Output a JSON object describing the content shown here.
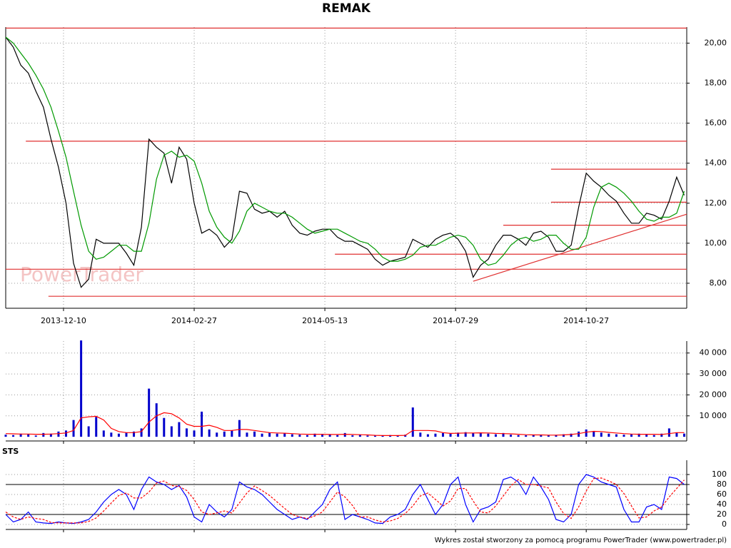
{
  "chart_data": [
    {
      "type": "line",
      "title": "REMAK",
      "watermark": "PowerTrader",
      "x": [
        0,
        3,
        6,
        9,
        12,
        15,
        18,
        21,
        24,
        27,
        30,
        33,
        36,
        39,
        42,
        45,
        48,
        51,
        54,
        57,
        60,
        63,
        66,
        69,
        72,
        75,
        78,
        81,
        84,
        87,
        90,
        93,
        96,
        99,
        102,
        105,
        108,
        111,
        114,
        117,
        120,
        123,
        126,
        129,
        132,
        135,
        138,
        141,
        144,
        147,
        150,
        153,
        156,
        159,
        162,
        165,
        168,
        171,
        174,
        177,
        180,
        183,
        186,
        189,
        192,
        195,
        198,
        201,
        204,
        207,
        210,
        213,
        216,
        219,
        222,
        225,
        228,
        231,
        234,
        237,
        240,
        243,
        246,
        249,
        252,
        255,
        258,
        261,
        264,
        267,
        270
      ],
      "series": [
        {
          "color": "#000000",
          "values": [
            20.3,
            19.8,
            18.9,
            18.5,
            17.6,
            16.8,
            15.2,
            13.8,
            12.0,
            9.0,
            7.8,
            8.2,
            10.2,
            10.0,
            10.0,
            10.0,
            9.5,
            8.9,
            10.8,
            15.2,
            14.8,
            14.5,
            13.0,
            14.8,
            14.2,
            12.0,
            10.5,
            10.7,
            10.4,
            9.8,
            10.2,
            12.6,
            12.5,
            11.7,
            11.5,
            11.6,
            11.3,
            11.6,
            10.9,
            10.5,
            10.4,
            10.6,
            10.7,
            10.7,
            10.3,
            10.1,
            10.1,
            9.9,
            9.7,
            9.2,
            8.9,
            9.1,
            9.2,
            9.3,
            10.2,
            10.0,
            9.8,
            10.2,
            10.4,
            10.5,
            10.2,
            9.6,
            8.3,
            8.9,
            9.2,
            9.9,
            10.4,
            10.4,
            10.2,
            9.9,
            10.5,
            10.6,
            10.3,
            9.6,
            9.6,
            9.9,
            11.8,
            13.5,
            13.1,
            12.8,
            12.4,
            12.1,
            11.5,
            11.0,
            11.0,
            11.5,
            11.4,
            11.2,
            12.1,
            13.3,
            12.4
          ]
        },
        {
          "color": "#009900",
          "values": [
            20.3,
            20.0,
            19.5,
            19.0,
            18.4,
            17.7,
            16.8,
            15.6,
            14.3,
            12.6,
            10.9,
            9.6,
            9.2,
            9.3,
            9.6,
            9.9,
            9.9,
            9.6,
            9.6,
            11.0,
            13.2,
            14.4,
            14.6,
            14.3,
            14.4,
            14.1,
            13.0,
            11.6,
            10.8,
            10.3,
            10.0,
            10.6,
            11.6,
            12.0,
            11.8,
            11.6,
            11.5,
            11.5,
            11.3,
            11.0,
            10.7,
            10.5,
            10.6,
            10.7,
            10.7,
            10.5,
            10.3,
            10.1,
            10.0,
            9.7,
            9.3,
            9.1,
            9.1,
            9.2,
            9.4,
            9.8,
            9.9,
            9.9,
            10.1,
            10.3,
            10.4,
            10.3,
            9.9,
            9.2,
            8.9,
            9.0,
            9.4,
            9.9,
            10.2,
            10.3,
            10.1,
            10.2,
            10.4,
            10.4,
            10.0,
            9.7,
            9.7,
            10.3,
            11.8,
            12.8,
            13.0,
            12.8,
            12.5,
            12.1,
            11.6,
            11.2,
            11.1,
            11.3,
            11.3,
            11.5,
            12.6
          ]
        }
      ],
      "hlines": [
        {
          "y": 20.75,
          "x0": 0
        },
        {
          "y": 15.1,
          "x0": 8
        },
        {
          "y": 13.7,
          "x0": 217
        },
        {
          "y": 12.05,
          "x0": 217
        },
        {
          "y": 10.9,
          "x0": 198
        },
        {
          "y": 9.45,
          "x0": 131
        },
        {
          "y": 8.7,
          "x0": 0
        },
        {
          "y": 7.35,
          "x0": 17
        }
      ],
      "trendline": {
        "x": [
          186,
          271
        ],
        "y": [
          8.1,
          11.45
        ]
      },
      "xlim": [
        0,
        271
      ],
      "xticks": [
        {
          "value": 23,
          "label": "2013-12-10"
        },
        {
          "value": 75,
          "label": "2014-02-27"
        },
        {
          "value": 127,
          "label": "2014-05-13"
        },
        {
          "value": 179,
          "label": "2014-07-29"
        },
        {
          "value": 231,
          "label": "2014-10-27"
        }
      ],
      "ylim": [
        6.75,
        20.8
      ],
      "yticks": [
        {
          "value": 8,
          "label": "8,00"
        },
        {
          "value": 10,
          "label": "10,00"
        },
        {
          "value": 12,
          "label": "12,00"
        },
        {
          "value": 14,
          "label": "14,00"
        },
        {
          "value": 16,
          "label": "16,00"
        },
        {
          "value": 18,
          "label": "18,00"
        },
        {
          "value": 20,
          "label": "20,00"
        }
      ],
      "grid": true
    },
    {
      "type": "bar",
      "x": [
        0,
        3,
        6,
        9,
        12,
        15,
        18,
        21,
        24,
        27,
        30,
        33,
        36,
        39,
        42,
        45,
        48,
        51,
        54,
        57,
        60,
        63,
        66,
        69,
        72,
        75,
        78,
        81,
        84,
        87,
        90,
        93,
        96,
        99,
        102,
        105,
        108,
        111,
        114,
        117,
        120,
        123,
        126,
        129,
        132,
        135,
        138,
        141,
        144,
        147,
        150,
        153,
        156,
        159,
        162,
        165,
        168,
        171,
        174,
        177,
        180,
        183,
        186,
        189,
        192,
        195,
        198,
        201,
        204,
        207,
        210,
        213,
        216,
        219,
        222,
        225,
        228,
        231,
        234,
        237,
        240,
        243,
        246,
        249,
        252,
        255,
        258,
        261,
        264,
        267,
        270
      ],
      "series": [
        {
          "type": "bar",
          "color": "#0000cc",
          "values": [
            1000,
            800,
            1500,
            1200,
            600,
            1800,
            1500,
            2500,
            3000,
            8000,
            46000,
            5000,
            9500,
            3000,
            2000,
            1500,
            2000,
            2500,
            4000,
            23000,
            16000,
            9000,
            5000,
            7000,
            4000,
            3000,
            12000,
            3500,
            2000,
            2500,
            3000,
            8000,
            2000,
            2500,
            1500,
            2000,
            1500,
            1800,
            1200,
            1000,
            800,
            1500,
            1000,
            1200,
            800,
            1800,
            700,
            900,
            600,
            500,
            400,
            800,
            600,
            1000,
            14000,
            2000,
            1200,
            1500,
            1800,
            1500,
            2000,
            2200,
            1800,
            2000,
            1500,
            1200,
            1800,
            1000,
            800,
            700,
            1000,
            900,
            700,
            800,
            1200,
            1500,
            2500,
            3500,
            2500,
            2000,
            1500,
            1200,
            1000,
            1200,
            1500,
            1000,
            800,
            1500,
            4000,
            2000,
            1500
          ]
        },
        {
          "type": "line",
          "color": "#ff0000",
          "values": [
            1500,
            1400,
            1300,
            1300,
            1200,
            1200,
            1300,
            1500,
            1800,
            3000,
            9000,
            9500,
            9800,
            8000,
            4000,
            2500,
            2000,
            2000,
            2500,
            7000,
            10000,
            11500,
            11000,
            9000,
            6000,
            5000,
            5000,
            5500,
            4500,
            3000,
            3000,
            3500,
            3500,
            3000,
            2500,
            2000,
            1800,
            1700,
            1500,
            1300,
            1200,
            1200,
            1200,
            1100,
            1100,
            1200,
            1100,
            1000,
            900,
            700,
            600,
            600,
            600,
            700,
            3000,
            3000,
            3000,
            2800,
            2000,
            1600,
            1700,
            1800,
            1800,
            1900,
            1800,
            1600,
            1500,
            1400,
            1200,
            1000,
            900,
            900,
            800,
            800,
            900,
            1100,
            1500,
            2200,
            2600,
            2500,
            2100,
            1800,
            1500,
            1300,
            1200,
            1200,
            1200,
            1100,
            1500,
            2000,
            2000
          ]
        }
      ],
      "xlim": [
        0,
        271
      ],
      "xticks": [
        23,
        75,
        127,
        179,
        231
      ],
      "ylim": [
        -2000,
        45700
      ],
      "yticks": [
        {
          "value": 10000,
          "label": "10 000"
        },
        {
          "value": 20000,
          "label": "20 000"
        },
        {
          "value": 30000,
          "label": "30 000"
        },
        {
          "value": 40000,
          "label": "40 000"
        }
      ],
      "grid": true
    },
    {
      "type": "line",
      "title": "STS",
      "x": [
        0,
        3,
        6,
        9,
        12,
        15,
        18,
        21,
        24,
        27,
        30,
        33,
        36,
        39,
        42,
        45,
        48,
        51,
        54,
        57,
        60,
        63,
        66,
        69,
        72,
        75,
        78,
        81,
        84,
        87,
        90,
        93,
        96,
        99,
        102,
        105,
        108,
        111,
        114,
        117,
        120,
        123,
        126,
        129,
        132,
        135,
        138,
        141,
        144,
        147,
        150,
        153,
        156,
        159,
        162,
        165,
        168,
        171,
        174,
        177,
        180,
        183,
        186,
        189,
        192,
        195,
        198,
        201,
        204,
        207,
        210,
        213,
        216,
        219,
        222,
        225,
        228,
        231,
        234,
        237,
        240,
        243,
        246,
        249,
        252,
        255,
        258,
        261,
        264,
        267,
        270
      ],
      "series": [
        {
          "color": "#0000ff",
          "values": [
            20,
            5,
            10,
            25,
            5,
            3,
            2,
            5,
            3,
            2,
            5,
            10,
            25,
            45,
            60,
            70,
            60,
            30,
            70,
            95,
            85,
            80,
            70,
            78,
            55,
            15,
            5,
            40,
            25,
            15,
            30,
            85,
            75,
            70,
            60,
            45,
            30,
            20,
            10,
            15,
            10,
            25,
            40,
            70,
            85,
            10,
            20,
            15,
            10,
            3,
            2,
            15,
            20,
            30,
            60,
            80,
            50,
            20,
            40,
            80,
            95,
            40,
            5,
            30,
            35,
            45,
            90,
            95,
            85,
            60,
            95,
            75,
            50,
            10,
            5,
            20,
            80,
            100,
            95,
            85,
            80,
            75,
            30,
            5,
            5,
            35,
            40,
            30,
            95,
            92,
            80
          ]
        },
        {
          "color": "#ff0000",
          "dashed": true,
          "values": [
            25,
            15,
            10,
            15,
            12,
            10,
            4,
            3,
            3,
            3,
            3,
            6,
            13,
            27,
            43,
            58,
            63,
            53,
            53,
            65,
            83,
            87,
            78,
            76,
            68,
            50,
            25,
            20,
            23,
            27,
            23,
            43,
            63,
            77,
            68,
            58,
            45,
            32,
            20,
            15,
            12,
            17,
            25,
            45,
            65,
            55,
            38,
            15,
            15,
            9,
            5,
            7,
            12,
            22,
            37,
            57,
            63,
            50,
            37,
            47,
            72,
            72,
            47,
            25,
            23,
            37,
            57,
            77,
            90,
            80,
            80,
            77,
            73,
            45,
            22,
            12,
            35,
            67,
            92,
            93,
            87,
            80,
            62,
            37,
            13,
            15,
            27,
            35,
            55,
            72,
            89
          ]
        }
      ],
      "reference_lines": [
        20,
        80
      ],
      "xlim": [
        0,
        271
      ],
      "xticks": [
        23,
        75,
        127,
        179,
        231
      ],
      "ylim": [
        -10,
        128.6
      ],
      "yticks": [
        0,
        20,
        40,
        60,
        80,
        100
      ],
      "grid": true
    }
  ],
  "footer": "Wykres został stworzony za pomocą programu PowerTrader (www.powertrader.pl)"
}
